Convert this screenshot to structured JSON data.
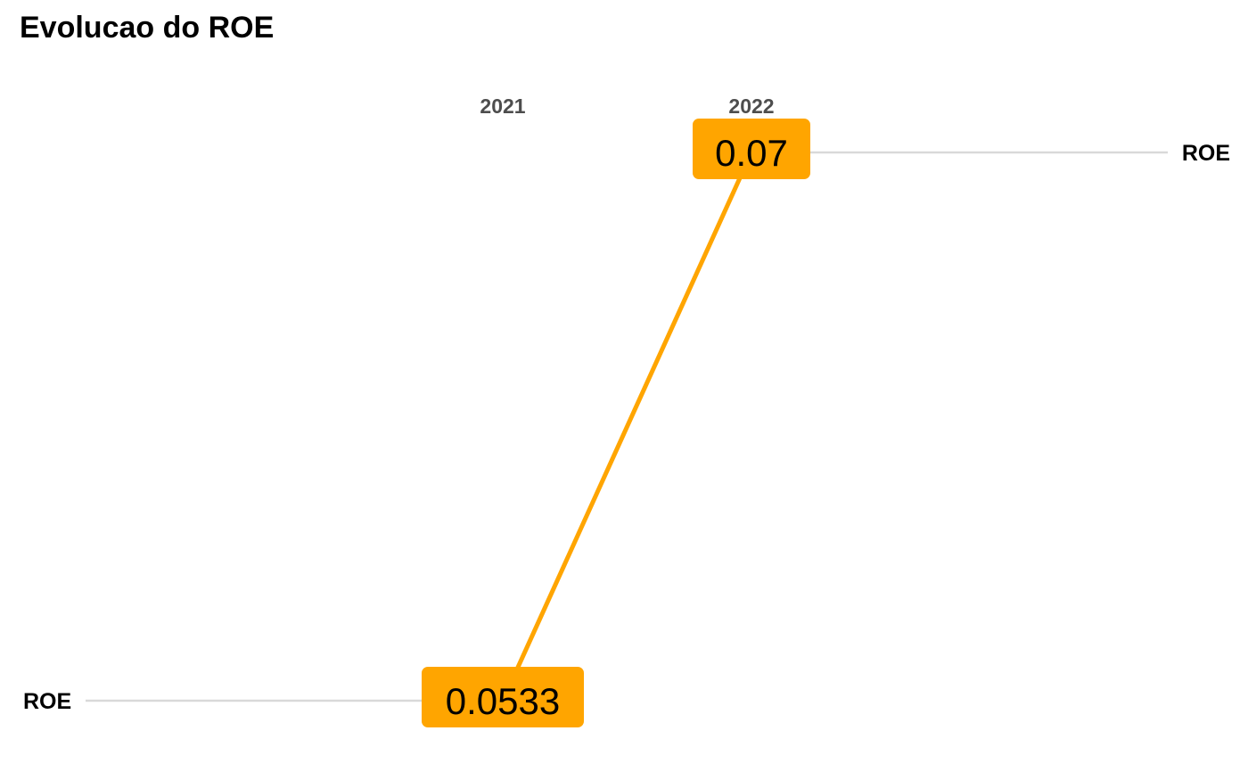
{
  "chart_data": {
    "type": "line",
    "title": "Evolucao do ROE",
    "categories": [
      "2021",
      "2022"
    ],
    "series": [
      {
        "name": "ROE",
        "values": [
          0.0533,
          0.07
        ],
        "labels": [
          "0.0533",
          "0.07"
        ],
        "color": "#FFA500"
      }
    ],
    "left_label": "ROE",
    "right_label": "ROE",
    "grid": false,
    "colors": {
      "line": "#FFA500",
      "label_box": "#FFA500",
      "connector": "#D9D9D9"
    }
  }
}
